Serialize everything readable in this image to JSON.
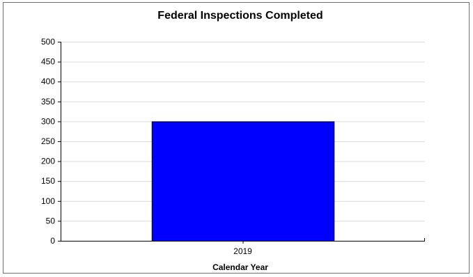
{
  "chart_data": {
    "type": "bar",
    "title": "Federal Inspections Completed",
    "xlabel": "Calendar Year",
    "ylabel": "",
    "categories": [
      "2019"
    ],
    "values": [
      300
    ],
    "ylim": [
      0,
      500
    ],
    "yticks": [
      0,
      50,
      100,
      150,
      200,
      250,
      300,
      350,
      400,
      450,
      500
    ],
    "grid": true,
    "legend": "none",
    "colors": {
      "bar": "#0000ff",
      "bar_outline": "#000000",
      "grid": "#d9d9d9",
      "axis": "#000000"
    }
  }
}
